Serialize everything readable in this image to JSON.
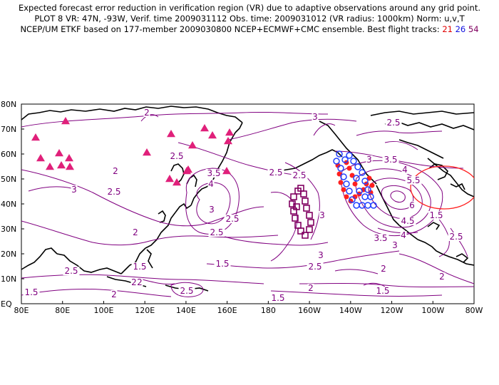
{
  "header": {
    "line1": "Expected forecast error reduction in verification region (VR) due to adaptive observations around any grid point.",
    "line2": "PLOT 8 VR: 47N, -93W, Verif. time 2009031112 Obs. time: 2009031012 (VR radius: 1000km) Norm: u,v,T",
    "line3_prefix": "NCEP/UM ETKF based on 177-member 2009030800 NCEP+ECMWF+CMC ensemble. Best flight tracks:",
    "track1": "21",
    "track2": "26",
    "track3": "54"
  },
  "axes": {
    "lat_labels": [
      "80N",
      "70N",
      "60N",
      "50N",
      "40N",
      "30N",
      "20N",
      "10N",
      "EQ"
    ],
    "lon_labels": [
      "80E",
      "80E",
      "100E",
      "120E",
      "140E",
      "160E",
      "180",
      "160W",
      "140W",
      "120W",
      "100W",
      "80W"
    ]
  },
  "colors": {
    "contour": "#800080",
    "track1": "#ff2020",
    "track2": "#2040ff",
    "track3": "#800060",
    "stations": "#e0207a",
    "vr_circle": "#ff2020"
  },
  "contour_labels": [
    "2",
    "2.5",
    "3",
    "2.5",
    "2",
    "2.5",
    "2.5",
    "3",
    "3.5",
    "4",
    "3",
    "2.5",
    "2.5",
    "3",
    "2.5",
    "2",
    "2",
    "1.5",
    "2.5",
    "1.5",
    "2",
    "2.5",
    "1.5",
    "2",
    "1.5",
    "2",
    "2.5",
    "3",
    "3",
    "3.5",
    "4",
    "5.5",
    "6",
    "4.5",
    "4",
    "3.5",
    "3",
    "2.5",
    "1.5",
    "2",
    "1.5",
    "2"
  ]
}
